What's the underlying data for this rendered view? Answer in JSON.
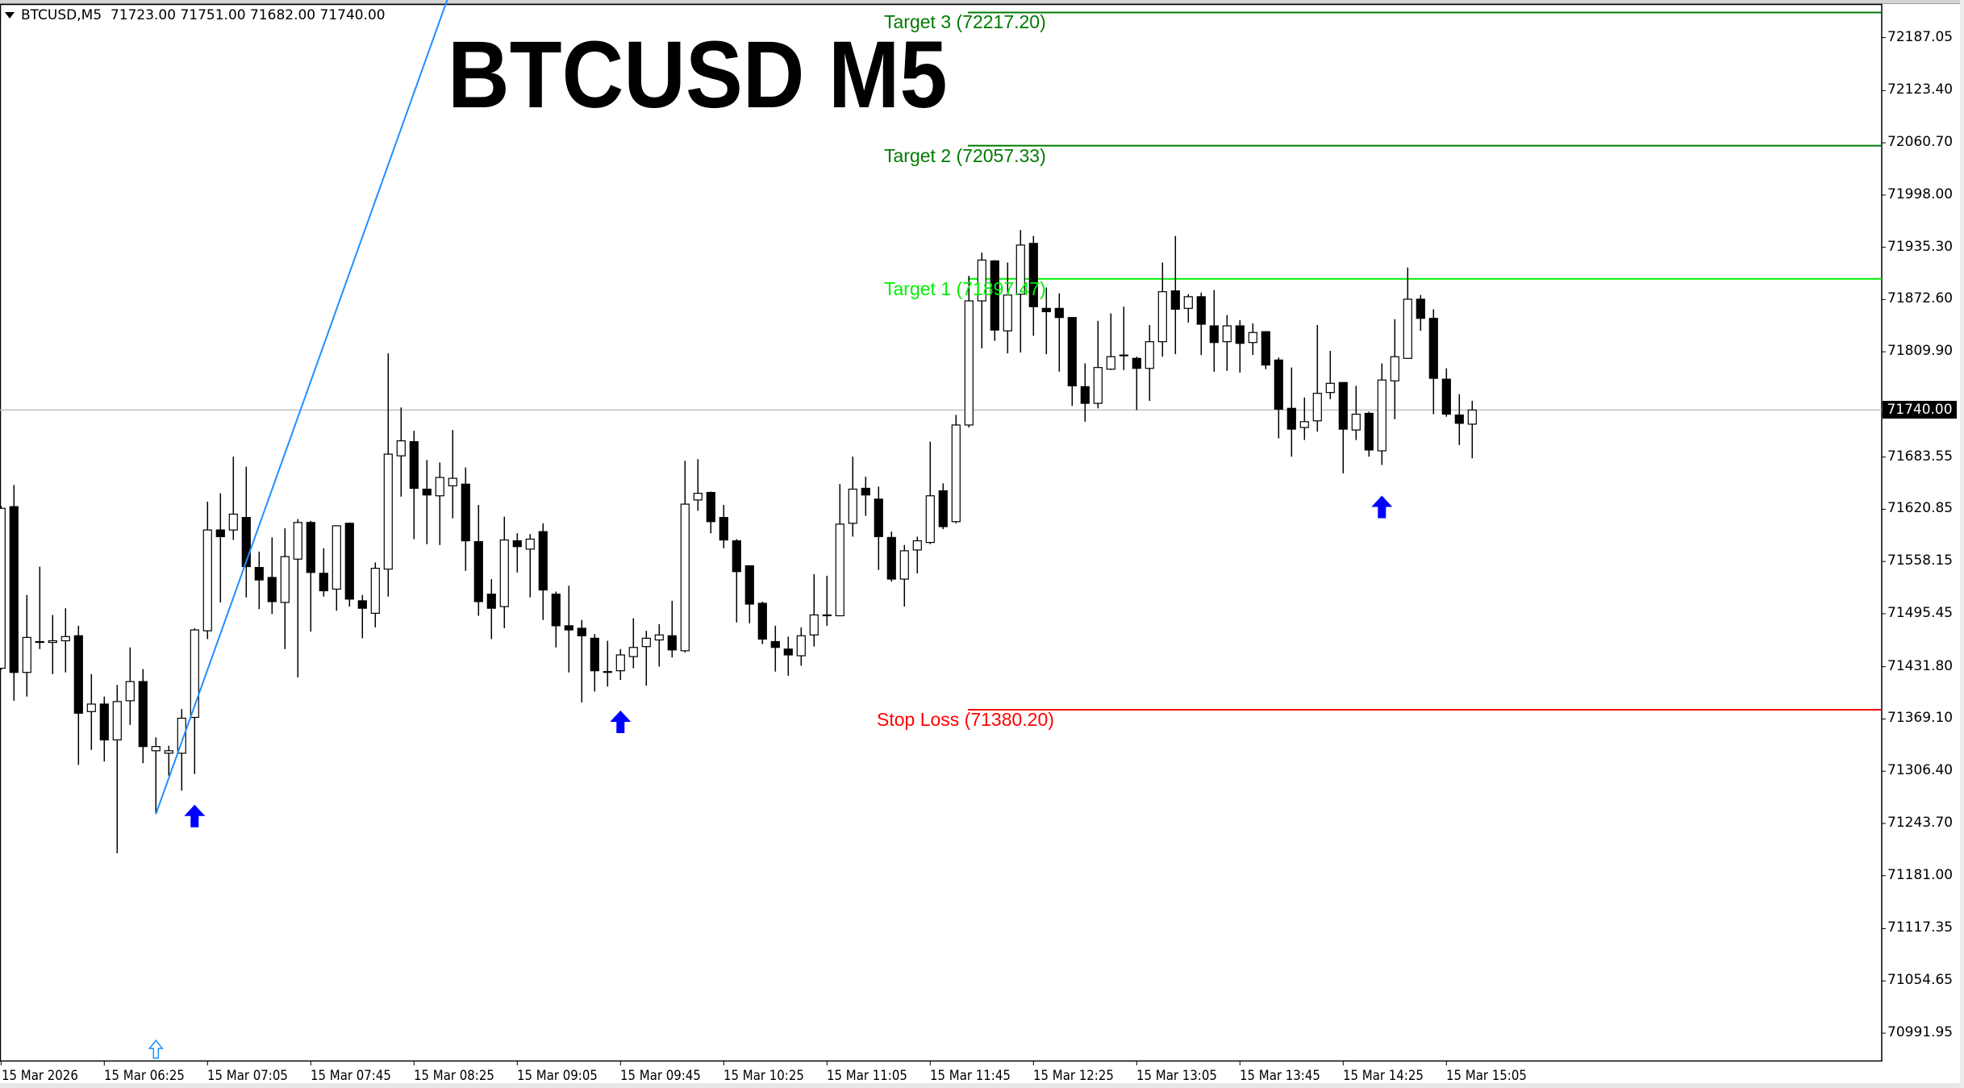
{
  "header": {
    "symbol_timeframe": "BTCUSD,M5",
    "ohlc": "71723.00 71751.00 71682.00 71740.00"
  },
  "title": "BTCUSD M5",
  "colors": {
    "trendline": "#1e90ff",
    "target3": "#007a00",
    "target2": "#007a00",
    "target1": "#00ee00",
    "stop_loss": "#ff0000",
    "arrow": "#0000ff",
    "hollow_arrow": "#1e90ff",
    "current_price_line": "#c0c0c0"
  },
  "levels": [
    {
      "key": "target3",
      "label": "Target 3 (72217.20)",
      "price": 72217.2
    },
    {
      "key": "target2",
      "label": "Target 2 (72057.33)",
      "price": 72057.33
    },
    {
      "key": "target1",
      "label": "Target 1 (71897.47)",
      "price": 71897.47
    },
    {
      "key": "stop_loss",
      "label": "Stop Loss (71380.20)",
      "price": 71380.2
    }
  ],
  "current_price": {
    "value": 71740.0,
    "label": "71740.00"
  },
  "chart_data": {
    "type": "candlestick",
    "symbol": "BTCUSD",
    "timeframe": "M5",
    "date": "15 Mar 2026",
    "ylim": [
      70960,
      72250
    ],
    "grid": false,
    "y_ticks": [
      "72187.05",
      "72123.40",
      "72060.70",
      "71998.00",
      "71935.30",
      "71872.60",
      "71809.90",
      "71683.55",
      "71620.85",
      "71558.15",
      "71495.45",
      "71431.80",
      "71369.10",
      "71306.40",
      "71243.70",
      "71181.00",
      "71117.35",
      "71054.65",
      "70991.95"
    ],
    "x_ticks": [
      {
        "time": "05:45",
        "label": "15 Mar 2026"
      },
      {
        "time": "06:25",
        "label": "15 Mar 06:25"
      },
      {
        "time": "07:05",
        "label": "15 Mar 07:05"
      },
      {
        "time": "07:45",
        "label": "15 Mar 07:45"
      },
      {
        "time": "08:25",
        "label": "15 Mar 08:25"
      },
      {
        "time": "09:05",
        "label": "15 Mar 09:05"
      },
      {
        "time": "09:45",
        "label": "15 Mar 09:45"
      },
      {
        "time": "10:25",
        "label": "15 Mar 10:25"
      },
      {
        "time": "11:05",
        "label": "15 Mar 11:05"
      },
      {
        "time": "11:45",
        "label": "15 Mar 11:45"
      },
      {
        "time": "12:25",
        "label": "15 Mar 12:25"
      },
      {
        "time": "13:05",
        "label": "15 Mar 13:05"
      },
      {
        "time": "13:45",
        "label": "15 Mar 13:45"
      },
      {
        "time": "14:25",
        "label": "15 Mar 14:25"
      },
      {
        "time": "15:05",
        "label": "15 Mar 15:05"
      }
    ],
    "columns": [
      "time",
      "open",
      "high",
      "low",
      "close"
    ],
    "bars": [
      [
        "05:45",
        71430,
        71625,
        71428,
        71622
      ],
      [
        "05:50",
        71624,
        71650,
        71391,
        71425
      ],
      [
        "05:55",
        71425,
        71518,
        71396,
        71467
      ],
      [
        "06:00",
        71462,
        71552,
        71453,
        71462
      ],
      [
        "06:05",
        71461,
        71494,
        71423,
        71463
      ],
      [
        "06:10",
        71463,
        71502,
        71425,
        71468
      ],
      [
        "06:15",
        71469,
        71481,
        71314,
        71376
      ],
      [
        "06:20",
        71378,
        71423,
        71332,
        71387
      ],
      [
        "06:25",
        71387,
        71396,
        71318,
        71344
      ],
      [
        "06:30",
        71344,
        71410,
        71208,
        71390
      ],
      [
        "06:35",
        71391,
        71455,
        71362,
        71414
      ],
      [
        "06:40",
        71414,
        71429,
        71316,
        71336
      ],
      [
        "06:45",
        71331,
        71347,
        71255,
        71336
      ],
      [
        "06:50",
        71328,
        71337,
        71301,
        71331
      ],
      [
        "06:55",
        71328,
        71381,
        71283,
        71370
      ],
      [
        "07:00",
        71371,
        71478,
        71303,
        71476
      ],
      [
        "07:05",
        71475,
        71630,
        71465,
        71596
      ],
      [
        "07:10",
        71596,
        71640,
        71509,
        71588
      ],
      [
        "07:15",
        71596,
        71684,
        71584,
        71615
      ],
      [
        "07:20",
        71611,
        71672,
        71515,
        71552
      ],
      [
        "07:25",
        71551,
        71570,
        71501,
        71536
      ],
      [
        "07:30",
        71539,
        71587,
        71495,
        71510
      ],
      [
        "07:35",
        71509,
        71598,
        71453,
        71564
      ],
      [
        "07:40",
        71561,
        71609,
        71419,
        71605
      ],
      [
        "07:45",
        71605,
        71607,
        71474,
        71545
      ],
      [
        "07:50",
        71544,
        71574,
        71516,
        71523
      ],
      [
        "07:55",
        71525,
        71601,
        71499,
        71601
      ],
      [
        "08:00",
        71604,
        71605,
        71504,
        71513
      ],
      [
        "08:05",
        71511,
        71518,
        71466,
        71502
      ],
      [
        "08:10",
        71496,
        71557,
        71479,
        71550
      ],
      [
        "08:15",
        71549,
        71808,
        71516,
        71687
      ],
      [
        "08:20",
        71685,
        71743,
        71636,
        71703
      ],
      [
        "08:25",
        71702,
        71715,
        71585,
        71646
      ],
      [
        "08:30",
        71645,
        71680,
        71579,
        71638
      ],
      [
        "08:35",
        71637,
        71677,
        71578,
        71659
      ],
      [
        "08:40",
        71649,
        71716,
        71610,
        71658
      ],
      [
        "08:45",
        71651,
        71671,
        71547,
        71583
      ],
      [
        "08:50",
        71582,
        71626,
        71493,
        71510
      ],
      [
        "08:55",
        71519,
        71537,
        71465,
        71502
      ],
      [
        "09:00",
        71504,
        71612,
        71478,
        71584
      ],
      [
        "09:05",
        71583,
        71592,
        71545,
        71576
      ],
      [
        "09:10",
        71573,
        71591,
        71515,
        71585
      ],
      [
        "09:15",
        71594,
        71604,
        71488,
        71524
      ],
      [
        "09:20",
        71519,
        71522,
        71455,
        71481
      ],
      [
        "09:25",
        71481,
        71529,
        71425,
        71476
      ],
      [
        "09:30",
        71478,
        71488,
        71389,
        71469
      ],
      [
        "09:35",
        71466,
        71471,
        71402,
        71427
      ],
      [
        "09:40",
        71426,
        71463,
        71408,
        71426
      ],
      [
        "09:45",
        71427,
        71453,
        71416,
        71446
      ],
      [
        "09:50",
        71444,
        71490,
        71430,
        71455
      ],
      [
        "09:55",
        71456,
        71475,
        71409,
        71466
      ],
      [
        "10:00",
        71464,
        71483,
        71432,
        71470
      ],
      [
        "10:05",
        71469,
        71511,
        71443,
        71452
      ],
      [
        "10:10",
        71451,
        71679,
        71449,
        71627
      ],
      [
        "10:15",
        71632,
        71681,
        71619,
        71640
      ],
      [
        "10:20",
        71641,
        71642,
        71592,
        71606
      ],
      [
        "10:25",
        71611,
        71626,
        71574,
        71584
      ],
      [
        "10:30",
        71583,
        71585,
        71485,
        71546
      ],
      [
        "10:35",
        71553,
        71553,
        71484,
        71507
      ],
      [
        "10:40",
        71508,
        71510,
        71459,
        71465
      ],
      [
        "10:45",
        71462,
        71481,
        71426,
        71455
      ],
      [
        "10:50",
        71453,
        71468,
        71421,
        71446
      ],
      [
        "10:55",
        71445,
        71479,
        71433,
        71469
      ],
      [
        "11:00",
        71470,
        71543,
        71456,
        71494
      ],
      [
        "11:05",
        71494,
        71541,
        71481,
        71494
      ],
      [
        "11:10",
        71493,
        71651,
        71493,
        71603
      ],
      [
        "11:15",
        71604,
        71684,
        71588,
        71645
      ],
      [
        "11:20",
        71646,
        71660,
        71613,
        71638
      ],
      [
        "11:25",
        71633,
        71648,
        71548,
        71588
      ],
      [
        "11:30",
        71587,
        71594,
        71534,
        71537
      ],
      [
        "11:35",
        71537,
        71578,
        71504,
        71571
      ],
      [
        "11:40",
        71572,
        71588,
        71544,
        71583
      ],
      [
        "11:45",
        71581,
        71702,
        71579,
        71637
      ],
      [
        "11:50",
        71643,
        71652,
        71597,
        71600
      ],
      [
        "11:55",
        71606,
        71734,
        71604,
        71722
      ],
      [
        "12:00",
        71722,
        71901,
        71719,
        71871
      ],
      [
        "12:05",
        71871,
        71929,
        71814,
        71920
      ],
      [
        "12:10",
        71919,
        71920,
        71823,
        71836
      ],
      [
        "12:15",
        71835,
        71917,
        71808,
        71878
      ],
      [
        "12:20",
        71879,
        71956,
        71809,
        71938
      ],
      [
        "12:25",
        71940,
        71949,
        71829,
        71864
      ],
      [
        "12:30",
        71862,
        71887,
        71807,
        71858
      ],
      [
        "12:35",
        71862,
        71880,
        71786,
        71851
      ],
      [
        "12:40",
        71851,
        71851,
        71745,
        71769
      ],
      [
        "12:45",
        71768,
        71796,
        71726,
        71748
      ],
      [
        "12:50",
        71748,
        71847,
        71742,
        71791
      ],
      [
        "12:55",
        71789,
        71856,
        71788,
        71804
      ],
      [
        "13:00",
        71806,
        71864,
        71788,
        71806
      ],
      [
        "13:05",
        71802,
        71804,
        71740,
        71790
      ],
      [
        "13:10",
        71790,
        71842,
        71751,
        71822
      ],
      [
        "13:15",
        71822,
        71917,
        71804,
        71882
      ],
      [
        "13:20",
        71883,
        71949,
        71807,
        71861
      ],
      [
        "13:25",
        71862,
        71879,
        71845,
        71876
      ],
      [
        "13:30",
        71876,
        71881,
        71806,
        71843
      ],
      [
        "13:35",
        71841,
        71884,
        71786,
        71821
      ],
      [
        "13:40",
        71822,
        71854,
        71787,
        71841
      ],
      [
        "13:45",
        71841,
        71848,
        71785,
        71820
      ],
      [
        "13:50",
        71821,
        71844,
        71806,
        71833
      ],
      [
        "13:55",
        71834,
        71834,
        71789,
        71794
      ],
      [
        "14:00",
        71800,
        71803,
        71706,
        71741
      ],
      [
        "14:05",
        71742,
        71791,
        71684,
        71717
      ],
      [
        "14:10",
        71719,
        71755,
        71704,
        71726
      ],
      [
        "14:15",
        71727,
        71842,
        71714,
        71760
      ],
      [
        "14:20",
        71761,
        71811,
        71753,
        71772
      ],
      [
        "14:25",
        71773,
        71773,
        71664,
        71717
      ],
      [
        "14:30",
        71716,
        71769,
        71704,
        71735
      ],
      [
        "14:35",
        71736,
        71738,
        71684,
        71692
      ],
      [
        "14:40",
        71691,
        71796,
        71674,
        71776
      ],
      [
        "14:45",
        71775,
        71849,
        71729,
        71804
      ],
      [
        "14:50",
        71802,
        71911,
        71802,
        71873
      ],
      [
        "14:55",
        71873,
        71878,
        71835,
        71850
      ],
      [
        "15:00",
        71850,
        71861,
        71735,
        71778
      ],
      [
        "15:05",
        71777,
        71790,
        71732,
        71735
      ],
      [
        "15:10",
        71734,
        71759,
        71698,
        71724
      ],
      [
        "15:15",
        71723,
        71751,
        71682,
        71740
      ]
    ],
    "buy_arrows": [
      "07:00",
      "09:45",
      "14:40"
    ],
    "hollow_arrow": "06:45",
    "trendline": [
      {
        "time": "06:45",
        "price": 71255
      },
      {
        "time": "08:25",
        "price": 72121
      }
    ]
  }
}
